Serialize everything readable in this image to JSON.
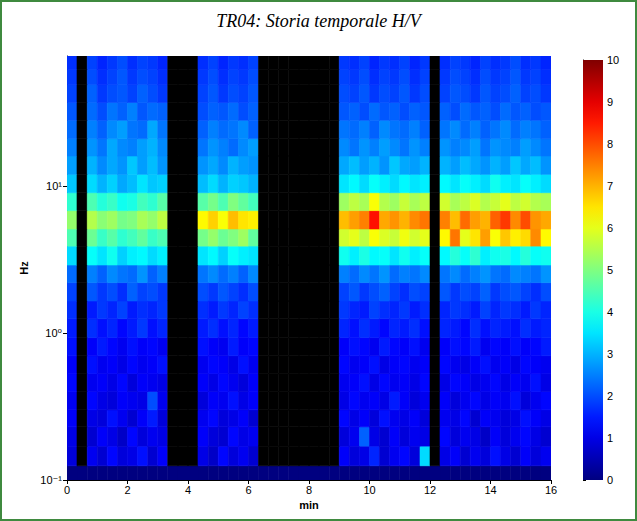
{
  "chart_data": {
    "type": "heatmap",
    "title": "TR04: Storia temporale H/V",
    "xlabel": "min",
    "ylabel": "Hz",
    "log": "y",
    "grid": false,
    "xlim": [
      0,
      16
    ],
    "xticks": [
      0,
      2,
      4,
      6,
      8,
      10,
      12,
      14,
      16
    ],
    "ylim": [
      0.1,
      76.6
    ],
    "yticks": [
      {
        "value": 0.1,
        "label": "10⁻¹"
      },
      {
        "value": 1,
        "label": "10⁰"
      },
      {
        "value": 10,
        "label": "10¹"
      }
    ],
    "x_edges": [
      0,
      0.33,
      0.67,
      1,
      1.33,
      1.67,
      2,
      2.33,
      2.67,
      3,
      3.33,
      3.67,
      4,
      4.33,
      4.67,
      5,
      5.33,
      5.67,
      6,
      6.33,
      6.67,
      7,
      7.33,
      7.67,
      8,
      8.33,
      8.67,
      9,
      9.33,
      9.67,
      10,
      10.33,
      10.67,
      11,
      11.33,
      11.67,
      12,
      12.33,
      12.67,
      13,
      13.33,
      13.67,
      14,
      14.33,
      14.67,
      15,
      15.33,
      15.67,
      16
    ],
    "y_edges": [
      0.1,
      0.125,
      0.17,
      0.23,
      0.3,
      0.4,
      0.53,
      0.7,
      0.93,
      1.25,
      1.65,
      2.2,
      2.9,
      3.9,
      5.1,
      6.8,
      9.0,
      12,
      16,
      21,
      28,
      37,
      49,
      62,
      76.6
    ],
    "values": [
      [
        0,
        0,
        0,
        0,
        0,
        0,
        0,
        0,
        0,
        0,
        0,
        0,
        0,
        0,
        0,
        0,
        0,
        0,
        0,
        0,
        0,
        0,
        0,
        0,
        0,
        0,
        0,
        0,
        0,
        0,
        0,
        0,
        0,
        0,
        0,
        0,
        0,
        0,
        0,
        0,
        0,
        0,
        0,
        0,
        0,
        0,
        0,
        0
      ],
      [
        0.9,
        null,
        1.1,
        0.8,
        1.3,
        0.9,
        1.0,
        1.4,
        0.8,
        1.2,
        null,
        null,
        null,
        1.0,
        0.7,
        1.3,
        0.9,
        1.1,
        0.8,
        null,
        null,
        null,
        null,
        null,
        null,
        null,
        null,
        1.2,
        0.9,
        1.0,
        1.6,
        0.8,
        1.1,
        1.3,
        0.9,
        3.4,
        null,
        1.0,
        1.2,
        0.8,
        1.1,
        0.9,
        1.4,
        1.0,
        0.8,
        1.2,
        0.9,
        1.1
      ],
      [
        1.0,
        null,
        0.8,
        1.2,
        1.0,
        0.7,
        1.3,
        0.9,
        1.1,
        1.0,
        null,
        null,
        null,
        1.2,
        0.9,
        0.8,
        1.3,
        1.0,
        1.1,
        null,
        null,
        null,
        null,
        null,
        null,
        null,
        null,
        0.9,
        1.1,
        2.2,
        1.0,
        0.8,
        1.2,
        0.9,
        1.1,
        1.0,
        null,
        1.3,
        0.9,
        1.1,
        1.0,
        0.7,
        1.2,
        0.9,
        1.1,
        1.3,
        1.0,
        0.8
      ],
      [
        1.2,
        null,
        1.0,
        0.9,
        1.4,
        1.1,
        0.8,
        1.2,
        1.5,
        0.9,
        null,
        null,
        null,
        1.1,
        1.3,
        0.9,
        1.0,
        1.2,
        0.8,
        null,
        null,
        null,
        null,
        null,
        null,
        null,
        null,
        1.3,
        1.0,
        1.2,
        0.9,
        1.4,
        1.1,
        1.0,
        1.2,
        0.9,
        null,
        1.1,
        1.0,
        1.3,
        0.8,
        1.2,
        1.1,
        0.9,
        1.0,
        1.4,
        1.2,
        1.0
      ],
      [
        1.1,
        null,
        1.3,
        1.0,
        0.9,
        1.2,
        1.1,
        1.0,
        2.0,
        1.1,
        null,
        null,
        null,
        0.9,
        1.2,
        1.1,
        1.4,
        1.0,
        1.2,
        null,
        null,
        null,
        null,
        null,
        null,
        null,
        null,
        1.0,
        1.3,
        1.1,
        1.2,
        1.0,
        1.5,
        1.2,
        0.9,
        1.1,
        null,
        1.2,
        0.9,
        1.1,
        1.3,
        1.0,
        1.2,
        1.1,
        1.4,
        0.9,
        1.1,
        1.3
      ],
      [
        1.3,
        null,
        1.1,
        1.2,
        1.0,
        1.3,
        0.9,
        1.2,
        1.1,
        1.0,
        null,
        null,
        null,
        1.2,
        1.0,
        1.3,
        1.1,
        0.9,
        1.2,
        null,
        null,
        null,
        null,
        null,
        null,
        null,
        null,
        1.1,
        1.2,
        1.4,
        1.0,
        1.3,
        1.1,
        1.2,
        1.0,
        1.3,
        null,
        1.0,
        1.3,
        1.2,
        1.0,
        1.1,
        1.3,
        1.0,
        1.2,
        1.1,
        1.4,
        1.0
      ],
      [
        1.2,
        null,
        1.4,
        1.1,
        1.2,
        1.0,
        1.3,
        1.1,
        1.2,
        1.4,
        null,
        null,
        null,
        1.1,
        1.3,
        1.2,
        1.0,
        1.4,
        1.1,
        null,
        null,
        null,
        null,
        null,
        null,
        null,
        null,
        1.3,
        1.1,
        1.2,
        1.4,
        1.0,
        1.2,
        1.3,
        1.1,
        1.2,
        null,
        1.3,
        1.1,
        1.0,
        1.2,
        1.4,
        1.1,
        1.2,
        1.0,
        1.3,
        1.2,
        1.1
      ],
      [
        1.4,
        null,
        1.2,
        1.5,
        1.3,
        1.1,
        1.4,
        1.2,
        1.3,
        1.1,
        null,
        null,
        null,
        1.4,
        1.2,
        1.1,
        1.5,
        1.2,
        1.3,
        null,
        null,
        null,
        null,
        null,
        null,
        null,
        null,
        1.2,
        1.4,
        1.3,
        1.1,
        1.5,
        1.3,
        1.2,
        1.4,
        1.1,
        null,
        1.2,
        1.4,
        1.3,
        1.5,
        1.1,
        1.3,
        1.2,
        1.4,
        1.2,
        1.3,
        1.5
      ],
      [
        1.5,
        null,
        1.7,
        1.4,
        1.6,
        1.3,
        1.5,
        1.8,
        1.4,
        1.6,
        null,
        null,
        null,
        1.5,
        1.7,
        1.4,
        1.6,
        1.3,
        1.5,
        null,
        null,
        null,
        null,
        null,
        null,
        null,
        null,
        1.6,
        1.4,
        1.7,
        1.5,
        1.3,
        1.6,
        1.5,
        1.7,
        1.4,
        null,
        1.6,
        1.5,
        1.3,
        1.7,
        1.4,
        1.6,
        1.5,
        1.4,
        1.7,
        1.5,
        1.6
      ],
      [
        1.7,
        null,
        1.5,
        1.8,
        1.6,
        1.9,
        1.5,
        1.7,
        1.6,
        1.8,
        null,
        null,
        null,
        1.7,
        1.5,
        1.8,
        1.6,
        1.9,
        1.7,
        null,
        null,
        null,
        null,
        null,
        null,
        null,
        null,
        1.8,
        1.6,
        1.5,
        1.9,
        1.7,
        1.6,
        1.8,
        1.5,
        1.7,
        null,
        1.6,
        1.8,
        1.7,
        1.5,
        1.9,
        1.6,
        1.8,
        1.7,
        1.5,
        1.8,
        1.6
      ],
      [
        1.9,
        null,
        2.1,
        1.8,
        2.0,
        1.7,
        2.2,
        1.9,
        2.0,
        1.8,
        null,
        null,
        null,
        2.0,
        1.8,
        2.1,
        1.9,
        1.7,
        2.0,
        null,
        null,
        null,
        null,
        null,
        null,
        null,
        null,
        1.9,
        2.1,
        1.8,
        2.0,
        2.2,
        1.9,
        1.7,
        2.0,
        1.9,
        null,
        2.1,
        1.8,
        2.0,
        1.9,
        2.2,
        1.8,
        2.0,
        2.1,
        1.9,
        1.7,
        2.0
      ],
      [
        2.3,
        null,
        2.5,
        2.2,
        2.6,
        2.4,
        2.3,
        2.7,
        2.2,
        2.5,
        null,
        null,
        null,
        2.4,
        2.6,
        2.3,
        2.5,
        2.2,
        2.6,
        null,
        null,
        null,
        null,
        null,
        null,
        null,
        null,
        2.5,
        2.3,
        2.6,
        2.4,
        2.7,
        2.3,
        2.5,
        2.4,
        2.6,
        null,
        2.4,
        2.6,
        2.3,
        2.5,
        2.7,
        2.4,
        2.3,
        2.6,
        2.5,
        2.4,
        2.7
      ],
      [
        3.4,
        null,
        3.8,
        3.5,
        3.9,
        3.3,
        3.6,
        3.7,
        3.4,
        3.6,
        null,
        null,
        null,
        3.5,
        3.7,
        3.3,
        3.8,
        3.6,
        3.5,
        null,
        null,
        null,
        null,
        null,
        null,
        null,
        null,
        3.9,
        3.6,
        4.0,
        3.7,
        3.8,
        3.5,
        3.9,
        3.6,
        3.8,
        null,
        3.7,
        4.1,
        3.8,
        4.2,
        3.6,
        3.9,
        4.0,
        3.7,
        4.1,
        3.8,
        3.9
      ],
      [
        4.5,
        null,
        4.8,
        4.3,
        4.6,
        4.2,
        4.4,
        4.7,
        4.3,
        4.5,
        null,
        null,
        null,
        4.9,
        5.2,
        4.8,
        5.0,
        5.3,
        4.7,
        null,
        null,
        null,
        null,
        null,
        null,
        null,
        null,
        5.8,
        6.0,
        5.6,
        6.2,
        5.9,
        5.7,
        6.1,
        5.8,
        6.0,
        null,
        6.3,
        7.6,
        6.0,
        6.5,
        7.2,
        6.2,
        6.8,
        6.4,
        6.6,
        7.4,
        6.3
      ],
      [
        5.2,
        null,
        5.5,
        5.1,
        5.3,
        4.9,
        5.0,
        5.4,
        5.2,
        5.6,
        null,
        null,
        null,
        6.3,
        6.7,
        6.2,
        6.9,
        6.5,
        6.4,
        null,
        null,
        null,
        null,
        null,
        null,
        null,
        null,
        6.9,
        7.2,
        7.5,
        8.6,
        7.1,
        7.3,
        7.0,
        7.4,
        7.6,
        null,
        7.5,
        6.9,
        7.7,
        7.2,
        7.0,
        7.8,
        8.2,
        7.4,
        8.0,
        7.3,
        7.1
      ],
      [
        4.2,
        null,
        4.5,
        4.1,
        4.3,
        3.9,
        4.0,
        4.4,
        4.2,
        4.6,
        null,
        null,
        null,
        4.6,
        4.9,
        4.5,
        5.0,
        4.7,
        4.4,
        null,
        null,
        null,
        null,
        null,
        null,
        null,
        null,
        5.3,
        5.6,
        5.4,
        6.2,
        5.5,
        5.3,
        5.7,
        5.4,
        5.6,
        null,
        5.8,
        5.4,
        5.6,
        5.9,
        5.5,
        5.7,
        6.0,
        5.6,
        5.8,
        5.5,
        5.4
      ],
      [
        3.2,
        null,
        3.4,
        3.0,
        3.3,
        2.9,
        3.1,
        3.5,
        3.2,
        3.3,
        null,
        null,
        null,
        3.1,
        3.4,
        3.0,
        3.3,
        3.2,
        3.0,
        null,
        null,
        null,
        null,
        null,
        null,
        null,
        null,
        3.5,
        3.7,
        3.4,
        3.8,
        3.6,
        3.4,
        3.7,
        3.5,
        3.6,
        null,
        3.7,
        3.5,
        3.8,
        3.6,
        3.4,
        3.9,
        3.6,
        3.5,
        3.8,
        3.6,
        3.4
      ],
      [
        2.8,
        null,
        3.0,
        2.6,
        2.9,
        2.7,
        3.2,
        2.8,
        3.1,
        2.7,
        null,
        null,
        null,
        2.7,
        2.9,
        2.6,
        3.0,
        2.8,
        2.7,
        null,
        null,
        null,
        null,
        null,
        null,
        null,
        null,
        2.9,
        3.1,
        2.8,
        3.0,
        2.7,
        3.2,
        2.9,
        2.8,
        3.0,
        null,
        3.0,
        2.8,
        3.1,
        2.9,
        2.7,
        3.0,
        2.8,
        3.2,
        2.9,
        3.1,
        2.7
      ],
      [
        2.5,
        null,
        2.7,
        2.4,
        2.9,
        2.6,
        2.5,
        2.8,
        3.0,
        2.6,
        null,
        null,
        null,
        2.4,
        2.7,
        2.5,
        2.3,
        2.6,
        2.8,
        null,
        null,
        null,
        null,
        null,
        null,
        null,
        null,
        2.6,
        2.4,
        2.7,
        2.5,
        2.8,
        2.6,
        2.4,
        2.7,
        2.5,
        null,
        2.7,
        2.5,
        2.6,
        2.8,
        2.4,
        2.7,
        2.6,
        2.5,
        2.8,
        2.6,
        2.4
      ],
      [
        2.3,
        null,
        2.5,
        2.2,
        2.6,
        2.8,
        2.4,
        2.3,
        2.9,
        2.4,
        null,
        null,
        null,
        2.2,
        2.5,
        2.3,
        2.4,
        2.6,
        2.2,
        null,
        null,
        null,
        null,
        null,
        null,
        null,
        null,
        2.4,
        2.3,
        2.5,
        2.2,
        2.6,
        2.4,
        2.3,
        2.5,
        2.2,
        null,
        2.4,
        2.6,
        2.3,
        2.5,
        2.2,
        2.4,
        2.6,
        2.3,
        2.5,
        2.4,
        2.2
      ],
      [
        2.1,
        null,
        2.3,
        2.0,
        2.4,
        2.2,
        2.5,
        2.1,
        2.3,
        2.2,
        null,
        null,
        null,
        2.0,
        2.2,
        2.1,
        2.3,
        2.0,
        2.2,
        null,
        null,
        null,
        null,
        null,
        null,
        null,
        null,
        2.1,
        2.2,
        2.0,
        2.3,
        2.1,
        2.2,
        2.0,
        2.2,
        2.1,
        null,
        2.2,
        2.0,
        2.3,
        2.1,
        2.2,
        2.0,
        2.3,
        2.1,
        2.2,
        2.0,
        2.1
      ],
      [
        1.9,
        null,
        2.2,
        1.8,
        2.0,
        2.1,
        1.9,
        2.2,
        2.0,
        1.8,
        null,
        null,
        null,
        1.9,
        2.1,
        1.8,
        2.0,
        1.9,
        2.1,
        null,
        null,
        null,
        null,
        null,
        null,
        null,
        null,
        2.0,
        1.9,
        2.1,
        1.8,
        2.0,
        1.9,
        2.1,
        1.8,
        2.0,
        null,
        1.9,
        2.1,
        2.0,
        1.8,
        2.1,
        1.9,
        2.0,
        2.2,
        1.9,
        2.0,
        1.8
      ],
      [
        1.8,
        null,
        2.0,
        1.7,
        1.9,
        2.1,
        1.8,
        2.0,
        1.9,
        1.7,
        null,
        null,
        null,
        1.8,
        2.0,
        1.7,
        1.9,
        1.8,
        2.0,
        null,
        null,
        null,
        null,
        null,
        null,
        null,
        null,
        1.9,
        1.8,
        2.0,
        1.7,
        1.9,
        1.8,
        2.0,
        1.7,
        1.9,
        null,
        1.8,
        2.0,
        1.9,
        1.7,
        2.0,
        1.8,
        1.9,
        2.1,
        1.8,
        1.9,
        1.7
      ],
      [
        1.7,
        null,
        1.9,
        1.6,
        1.8,
        2.0,
        1.7,
        1.9,
        1.8,
        1.6,
        null,
        null,
        null,
        1.7,
        1.9,
        1.6,
        1.8,
        1.7,
        1.9,
        null,
        null,
        null,
        null,
        null,
        null,
        null,
        null,
        1.8,
        1.7,
        1.9,
        1.6,
        1.8,
        1.7,
        1.9,
        1.6,
        1.8,
        null,
        1.7,
        1.9,
        1.8,
        1.6,
        1.9,
        1.7,
        1.8,
        2.0,
        1.7,
        1.8,
        1.6
      ]
    ],
    "colorbar": {
      "range": [
        0,
        10
      ],
      "ticks": [
        0,
        1,
        2,
        3,
        4,
        5,
        6,
        7,
        8,
        9,
        10
      ]
    }
  }
}
